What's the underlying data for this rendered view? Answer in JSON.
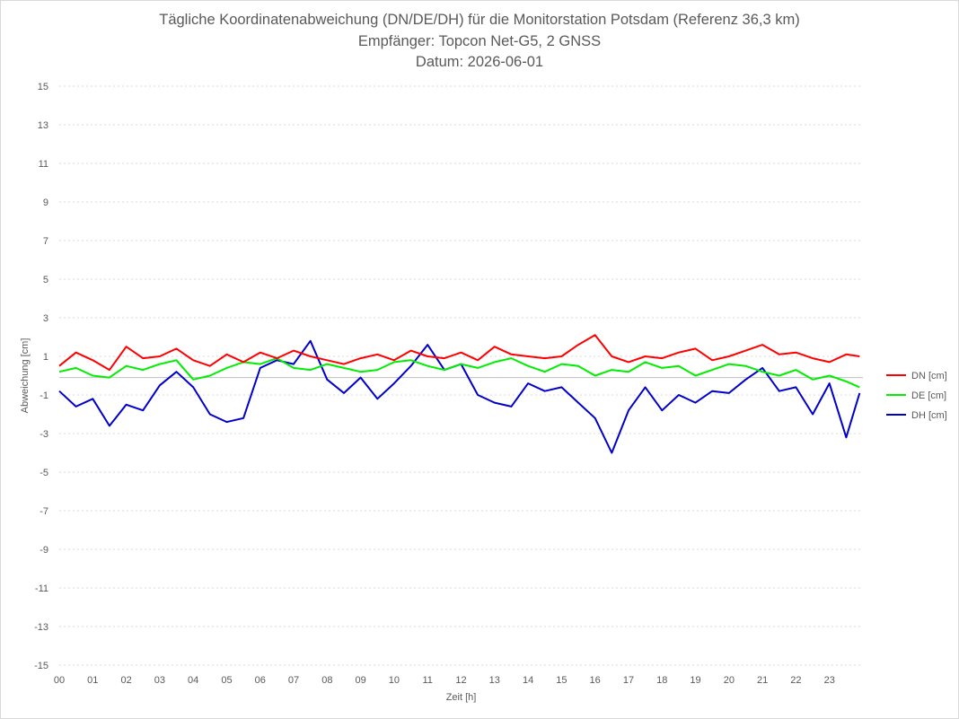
{
  "chart_data": {
    "type": "line",
    "title": "Tägliche Koordinatenabweichung (DN/DE/DH) für die Monitorstation Potsdam (Referenz 36,3 km)",
    "subtitle": "Empfänger: Topcon Net-G5, 2 GNSS",
    "date_line": "Datum: 2026-06-01",
    "xlabel": "Zeit [h]",
    "ylabel": "Abweichung [cm]",
    "ylim": [
      -15,
      15
    ],
    "xlim": [
      0,
      24
    ],
    "y_ticks": [
      "15",
      "13",
      "11",
      "9",
      "7",
      "5",
      "3",
      "1",
      "-1",
      "-3",
      "-5",
      "-7",
      "-9",
      "-11",
      "-13",
      "-15"
    ],
    "x_ticks": [
      "00",
      "01",
      "02",
      "03",
      "04",
      "05",
      "06",
      "07",
      "08",
      "09",
      "10",
      "11",
      "12",
      "13",
      "14",
      "15",
      "16",
      "17",
      "18",
      "19",
      "20",
      "21",
      "22",
      "23"
    ],
    "grid": "horizontal-dotted",
    "legend_position": "right",
    "series": [
      {
        "name": "DN [cm]",
        "color": "#ff0000",
        "x": [
          0,
          0.5,
          1,
          1.5,
          2,
          2.5,
          3,
          3.5,
          4,
          4.5,
          5,
          5.5,
          6,
          6.5,
          7,
          7.5,
          8,
          8.5,
          9,
          9.5,
          10,
          10.5,
          11,
          11.5,
          12,
          12.5,
          13,
          13.5,
          14,
          14.5,
          15,
          15.5,
          16,
          16.5,
          17,
          17.5,
          18,
          18.5,
          19,
          19.5,
          20,
          20.5,
          21,
          21.5,
          22,
          22.5,
          23,
          23.5,
          23.9
        ],
        "values": [
          0.5,
          1.2,
          0.8,
          0.3,
          1.5,
          0.9,
          1.0,
          1.4,
          0.8,
          0.5,
          1.1,
          0.7,
          1.2,
          0.9,
          1.3,
          1.0,
          0.8,
          0.6,
          0.9,
          1.1,
          0.8,
          1.3,
          1.0,
          0.9,
          1.2,
          0.8,
          1.5,
          1.1,
          1.0,
          0.9,
          1.0,
          1.6,
          2.1,
          1.0,
          0.7,
          1.0,
          0.9,
          1.2,
          1.4,
          0.8,
          1.0,
          1.3,
          1.6,
          1.1,
          1.2,
          0.9,
          0.7,
          1.1,
          1.0
        ]
      },
      {
        "name": "DE [cm]",
        "color": "#00ee00",
        "x": [
          0,
          0.5,
          1,
          1.5,
          2,
          2.5,
          3,
          3.5,
          4,
          4.5,
          5,
          5.5,
          6,
          6.5,
          7,
          7.5,
          8,
          8.5,
          9,
          9.5,
          10,
          10.5,
          11,
          11.5,
          12,
          12.5,
          13,
          13.5,
          14,
          14.5,
          15,
          15.5,
          16,
          16.5,
          17,
          17.5,
          18,
          18.5,
          19,
          19.5,
          20,
          20.5,
          21,
          21.5,
          22,
          22.5,
          23,
          23.5,
          23.9
        ],
        "values": [
          0.2,
          0.4,
          0.0,
          -0.1,
          0.5,
          0.3,
          0.6,
          0.8,
          -0.2,
          0.0,
          0.4,
          0.7,
          0.6,
          0.9,
          0.4,
          0.3,
          0.6,
          0.4,
          0.2,
          0.3,
          0.7,
          0.8,
          0.5,
          0.3,
          0.6,
          0.4,
          0.7,
          0.9,
          0.5,
          0.2,
          0.6,
          0.5,
          0.0,
          0.3,
          0.2,
          0.7,
          0.4,
          0.5,
          0.0,
          0.3,
          0.6,
          0.5,
          0.2,
          0.0,
          0.3,
          -0.2,
          0.0,
          -0.3,
          -0.6
        ]
      },
      {
        "name": "DH [cm]",
        "color": "#0000cc",
        "x": [
          0,
          0.5,
          1,
          1.5,
          2,
          2.5,
          3,
          3.5,
          4,
          4.5,
          5,
          5.5,
          6,
          6.5,
          7,
          7.5,
          8,
          8.5,
          9,
          9.5,
          10,
          10.5,
          11,
          11.5,
          12,
          12.5,
          13,
          13.5,
          14,
          14.5,
          15,
          15.5,
          16,
          16.5,
          17,
          17.5,
          18,
          18.5,
          19,
          19.5,
          20,
          20.5,
          21,
          21.5,
          22,
          22.5,
          23,
          23.5,
          23.9
        ],
        "values": [
          -0.8,
          -1.6,
          -1.2,
          -2.6,
          -1.5,
          -1.8,
          -0.5,
          0.2,
          -0.6,
          -2.0,
          -2.4,
          -2.2,
          0.4,
          0.8,
          0.6,
          1.8,
          -0.2,
          -0.9,
          -0.1,
          -1.2,
          -0.4,
          0.5,
          1.6,
          0.3,
          0.6,
          -1.0,
          -1.4,
          -1.6,
          -0.4,
          -0.8,
          -0.6,
          -1.4,
          -2.2,
          -4.0,
          -1.8,
          -0.6,
          -1.8,
          -1.0,
          -1.4,
          -0.8,
          -0.9,
          -0.2,
          0.4,
          -0.8,
          -0.6,
          -2.0,
          -0.4,
          -3.2,
          -0.9
        ]
      }
    ]
  }
}
